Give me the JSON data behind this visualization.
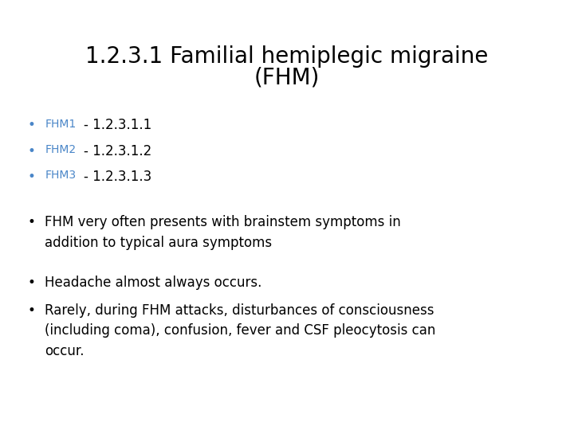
{
  "title_line1": "1.2.3.1 Familial hemiplegic migraine",
  "title_line2": "(FHM)",
  "title_fontsize": 20,
  "title_color": "#000000",
  "background_color": "#ffffff",
  "bullet_color": "#4a86c8",
  "text_color": "#000000",
  "fhm_label_color": "#4a86c8",
  "bullet1_label": "FHM1",
  "bullet1_text": "1.2.3.1.1",
  "bullet2_label": "FHM2",
  "bullet2_text": "1.2.3.1.2",
  "bullet3_label": "FHM3",
  "bullet3_text": "1.2.3.1.3",
  "para1": "FHM very often presents with brainstem symptoms in\naddition to typical aura symptoms",
  "para2": "Headache almost always occurs.",
  "para3": "Rarely, during FHM attacks, disturbances of consciousness\n(including coma), confusion, fever and CSF pleocytosis can\noccur.",
  "body_fontsize": 12,
  "label_fontsize": 10
}
